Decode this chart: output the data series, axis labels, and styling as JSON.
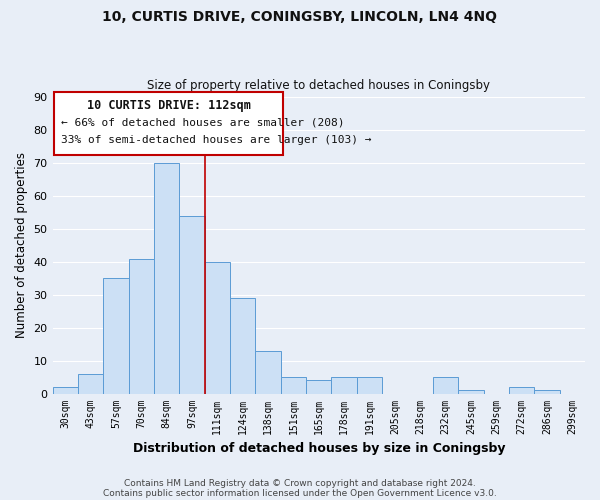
{
  "title_line1": "10, CURTIS DRIVE, CONINGSBY, LINCOLN, LN4 4NQ",
  "title_line2": "Size of property relative to detached houses in Coningsby",
  "xlabel": "Distribution of detached houses by size in Coningsby",
  "ylabel": "Number of detached properties",
  "bin_labels": [
    "30sqm",
    "43sqm",
    "57sqm",
    "70sqm",
    "84sqm",
    "97sqm",
    "111sqm",
    "124sqm",
    "138sqm",
    "151sqm",
    "165sqm",
    "178sqm",
    "191sqm",
    "205sqm",
    "218sqm",
    "232sqm",
    "245sqm",
    "259sqm",
    "272sqm",
    "286sqm",
    "299sqm"
  ],
  "bar_heights": [
    2,
    6,
    35,
    41,
    70,
    54,
    40,
    29,
    13,
    5,
    4,
    5,
    5,
    0,
    0,
    5,
    1,
    0,
    2,
    1,
    0
  ],
  "highlight_bar_index": 6,
  "bar_color": "#cce0f5",
  "bar_edge_color": "#5b9bd5",
  "highlight_line_color": "#c00000",
  "ylim": [
    0,
    90
  ],
  "yticks": [
    0,
    10,
    20,
    30,
    40,
    50,
    60,
    70,
    80,
    90
  ],
  "annotation_title": "10 CURTIS DRIVE: 112sqm",
  "annotation_line1": "← 66% of detached houses are smaller (208)",
  "annotation_line2": "33% of semi-detached houses are larger (103) →",
  "annotation_box_color": "#c00000",
  "footer_line1": "Contains HM Land Registry data © Crown copyright and database right 2024.",
  "footer_line2": "Contains public sector information licensed under the Open Government Licence v3.0.",
  "background_color": "#e8eef7",
  "plot_bg_color": "#e8eef7",
  "grid_color": "#ffffff"
}
